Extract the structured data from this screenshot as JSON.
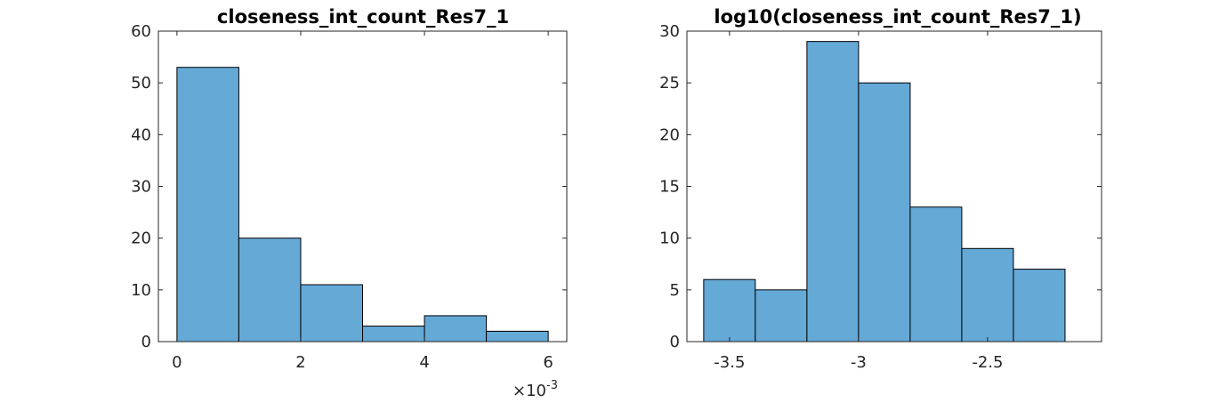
{
  "chart_data": [
    {
      "type": "bar",
      "title": "closeness_int_count_Res7_1",
      "xlabel": "",
      "ylabel": "",
      "bin_edges": [
        0,
        1,
        2,
        3,
        4,
        5,
        6
      ],
      "values": [
        53,
        20,
        11,
        3,
        5,
        2
      ],
      "xlim": [
        -0.3,
        6.3
      ],
      "ylim": [
        0,
        60
      ],
      "xticks": [
        0,
        2,
        4,
        6
      ],
      "xtick_labels": [
        "0",
        "2",
        "4",
        "6"
      ],
      "yticks": [
        0,
        10,
        20,
        30,
        40,
        50,
        60
      ],
      "ytick_labels": [
        "0",
        "10",
        "20",
        "30",
        "40",
        "50",
        "60"
      ],
      "x_exponent_label": "×10",
      "x_exponent_power": "-3",
      "bar_color": "#65a9d7",
      "grid": false
    },
    {
      "type": "bar",
      "title": "log10(closeness_int_count_Res7_1)",
      "xlabel": "",
      "ylabel": "",
      "bin_edges": [
        -3.6,
        -3.4,
        -3.2,
        -3.0,
        -2.8,
        -2.6,
        -2.4,
        -2.2
      ],
      "values": [
        6,
        5,
        29,
        25,
        13,
        9,
        7
      ],
      "xlim": [
        -3.665,
        -2.0585
      ],
      "ylim": [
        0,
        30
      ],
      "xticks": [
        -3.5,
        -3.0,
        -2.5
      ],
      "xtick_labels": [
        "-3.5",
        "-3",
        "-2.5"
      ],
      "yticks": [
        0,
        5,
        10,
        15,
        20,
        25,
        30
      ],
      "ytick_labels": [
        "0",
        "5",
        "10",
        "15",
        "20",
        "25",
        "30"
      ],
      "bar_color": "#65a9d7",
      "grid": false
    }
  ]
}
